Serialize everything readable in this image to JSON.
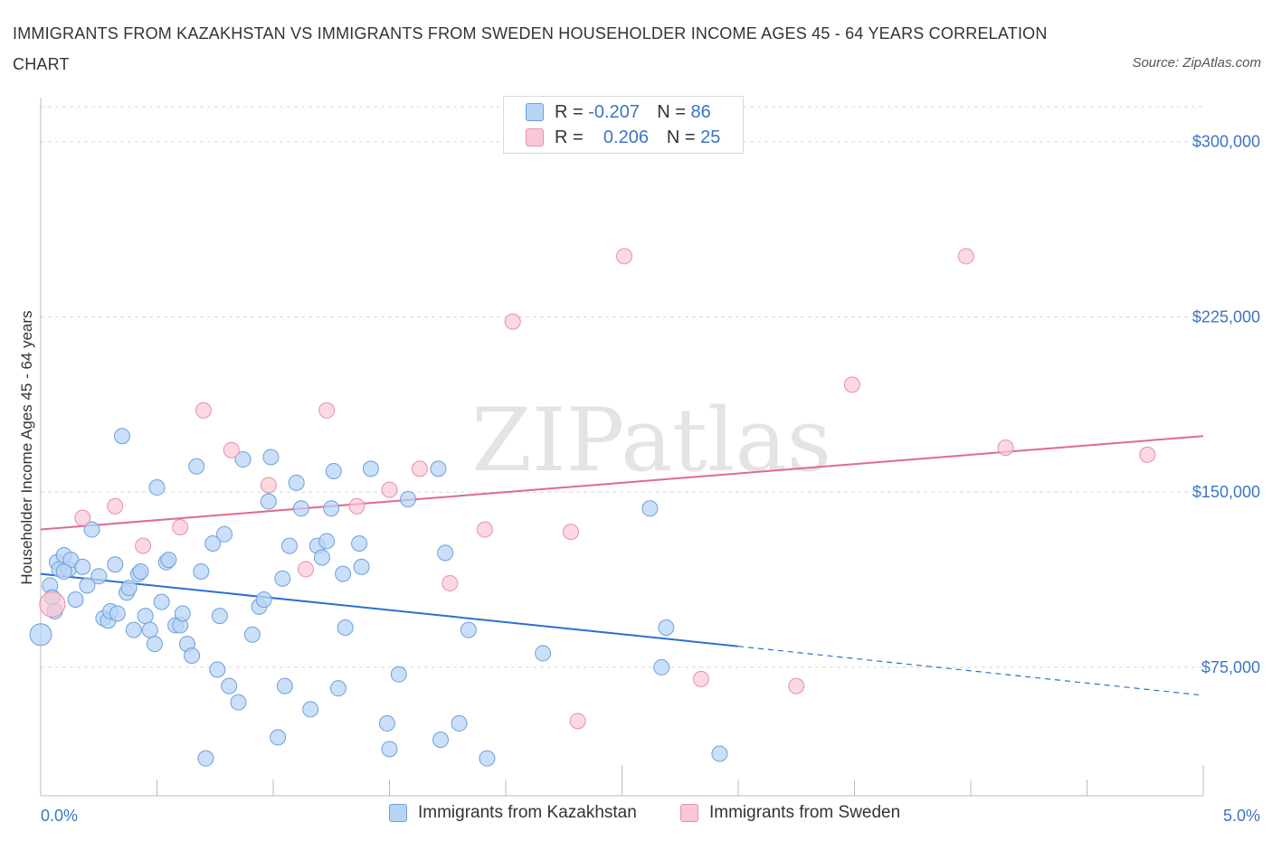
{
  "title": "IMMIGRANTS FROM KAZAKHSTAN VS IMMIGRANTS FROM SWEDEN HOUSEHOLDER INCOME AGES 45 - 64 YEARS CORRELATION CHART",
  "source": "Source: ZipAtlas.com",
  "watermark": "ZIPatlas",
  "legend_top": [
    {
      "r_label": "R =",
      "r_value": "-0.207",
      "n_label": "N =",
      "n_value": "86"
    },
    {
      "r_label": "R =",
      "r_value": "0.206",
      "n_label": "N =",
      "n_value": "25"
    }
  ],
  "colors": {
    "kazakhstan_fill": "#b8d4f5",
    "kazakhstan_stroke": "#6f9fdc",
    "kazakhstan_line": "#2a6fd0",
    "sweden_fill": "#f9c8d6",
    "sweden_stroke": "#e88fa9",
    "sweden_line": "#e06a92",
    "grid": "#d8d8d8",
    "tick_text": "#3d74c5"
  },
  "chart_data": {
    "type": "scatter",
    "title": "IMMIGRANTS FROM KAZAKHSTAN VS IMMIGRANTS FROM SWEDEN HOUSEHOLDER INCOME AGES 45 - 64 YEARS CORRELATION CHART",
    "xlabel": "",
    "ylabel": "Householder Income Ages 45 - 64 years",
    "xlim": [
      0,
      5.0
    ],
    "ylim": [
      20000,
      315000
    ],
    "x_tick_labels": [
      "0.0%",
      "5.0%"
    ],
    "y_ticks": [
      75000,
      150000,
      225000,
      300000
    ],
    "y_tick_labels": [
      "$75,000",
      "$150,000",
      "$225,000",
      "$300,000"
    ],
    "grid": true,
    "legend_position": "bottom",
    "series": [
      {
        "name": "Immigrants from Kazakhstan",
        "points": [
          [
            0.0,
            89000
          ],
          [
            0.04,
            110000
          ],
          [
            0.05,
            105000
          ],
          [
            0.06,
            99000
          ],
          [
            0.07,
            120000
          ],
          [
            0.08,
            117000
          ],
          [
            0.1,
            123000
          ],
          [
            0.12,
            117000
          ],
          [
            0.13,
            121000
          ],
          [
            0.15,
            104000
          ],
          [
            0.18,
            118000
          ],
          [
            0.2,
            110000
          ],
          [
            0.22,
            134000
          ],
          [
            0.25,
            114000
          ],
          [
            0.27,
            96000
          ],
          [
            0.29,
            95000
          ],
          [
            0.3,
            99000
          ],
          [
            0.32,
            119000
          ],
          [
            0.33,
            98000
          ],
          [
            0.35,
            174000
          ],
          [
            0.37,
            107000
          ],
          [
            0.38,
            109000
          ],
          [
            0.4,
            91000
          ],
          [
            0.42,
            115000
          ],
          [
            0.43,
            116000
          ],
          [
            0.45,
            97000
          ],
          [
            0.47,
            91000
          ],
          [
            0.49,
            85000
          ],
          [
            0.5,
            152000
          ],
          [
            0.52,
            103000
          ],
          [
            0.54,
            120000
          ],
          [
            0.55,
            121000
          ],
          [
            0.58,
            93000
          ],
          [
            0.6,
            93000
          ],
          [
            0.61,
            98000
          ],
          [
            0.63,
            85000
          ],
          [
            0.65,
            80000
          ],
          [
            0.67,
            161000
          ],
          [
            0.69,
            116000
          ],
          [
            0.71,
            36000
          ],
          [
            0.74,
            128000
          ],
          [
            0.76,
            74000
          ],
          [
            0.77,
            97000
          ],
          [
            0.79,
            132000
          ],
          [
            0.81,
            67000
          ],
          [
            0.85,
            60000
          ],
          [
            0.87,
            164000
          ],
          [
            0.91,
            89000
          ],
          [
            0.94,
            101000
          ],
          [
            0.96,
            104000
          ],
          [
            0.98,
            146000
          ],
          [
            0.99,
            165000
          ],
          [
            1.02,
            45000
          ],
          [
            1.04,
            113000
          ],
          [
            1.05,
            67000
          ],
          [
            1.07,
            127000
          ],
          [
            1.1,
            154000
          ],
          [
            1.12,
            143000
          ],
          [
            1.16,
            57000
          ],
          [
            1.19,
            127000
          ],
          [
            1.21,
            122000
          ],
          [
            1.23,
            129000
          ],
          [
            1.25,
            143000
          ],
          [
            1.26,
            159000
          ],
          [
            1.28,
            66000
          ],
          [
            1.3,
            115000
          ],
          [
            1.31,
            92000
          ],
          [
            1.37,
            128000
          ],
          [
            1.38,
            118000
          ],
          [
            1.42,
            160000
          ],
          [
            1.49,
            51000
          ],
          [
            1.5,
            40000
          ],
          [
            1.54,
            72000
          ],
          [
            1.58,
            147000
          ],
          [
            1.71,
            160000
          ],
          [
            1.72,
            44000
          ],
          [
            1.74,
            124000
          ],
          [
            1.8,
            51000
          ],
          [
            1.84,
            91000
          ],
          [
            1.92,
            36000
          ],
          [
            2.16,
            81000
          ],
          [
            2.62,
            143000
          ],
          [
            2.67,
            75000
          ],
          [
            2.69,
            92000
          ],
          [
            2.92,
            38000
          ],
          [
            0.1,
            116000
          ]
        ]
      },
      {
        "name": "Immigrants from Sweden",
        "points": [
          [
            0.05,
            102000
          ],
          [
            0.18,
            139000
          ],
          [
            0.32,
            144000
          ],
          [
            0.44,
            127000
          ],
          [
            0.6,
            135000
          ],
          [
            0.7,
            185000
          ],
          [
            0.82,
            168000
          ],
          [
            0.98,
            153000
          ],
          [
            1.14,
            117000
          ],
          [
            1.23,
            185000
          ],
          [
            1.36,
            144000
          ],
          [
            1.5,
            151000
          ],
          [
            1.63,
            160000
          ],
          [
            1.76,
            111000
          ],
          [
            1.91,
            134000
          ],
          [
            2.03,
            223000
          ],
          [
            2.28,
            133000
          ],
          [
            2.31,
            52000
          ],
          [
            2.51,
            251000
          ],
          [
            2.84,
            70000
          ],
          [
            3.25,
            67000
          ],
          [
            3.49,
            196000
          ],
          [
            3.98,
            251000
          ],
          [
            4.15,
            169000
          ],
          [
            4.76,
            166000
          ]
        ]
      }
    ],
    "trend_lines": [
      {
        "series": "Immigrants from Kazakhstan",
        "x0": 0.0,
        "y0": 115000,
        "x1": 3.0,
        "y1": 84000,
        "dashed_to": 5.0,
        "dashed_y": 63000
      },
      {
        "series": "Immigrants from Sweden",
        "x0": 0.0,
        "y0": 134000,
        "x1": 5.0,
        "y1": 174000
      }
    ]
  }
}
